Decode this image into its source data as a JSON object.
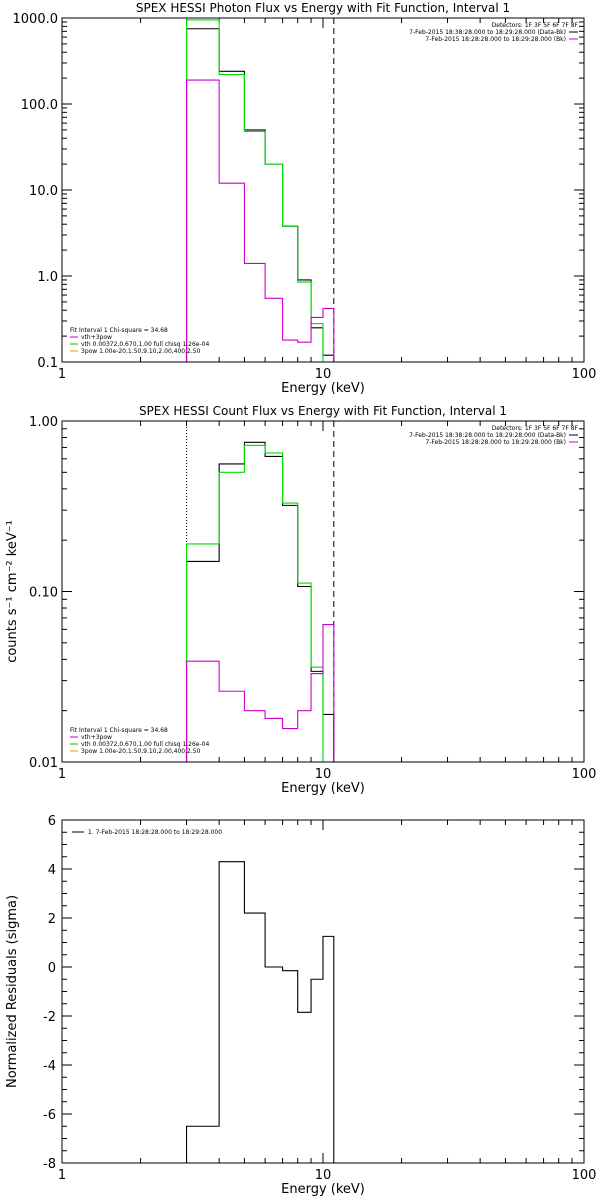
{
  "chart_data": [
    {
      "type": "line",
      "title": "SPEX HESSI Photon Flux vs Energy with Fit Function, Interval 1",
      "xlabel": "Energy (keV)",
      "ylabel": "",
      "xscale": "log",
      "yscale": "log",
      "xlim": [
        1,
        100
      ],
      "ylim": [
        0.1,
        1000
      ],
      "xtick_labels": [
        "1",
        "10",
        "100"
      ],
      "ytick_labels": [
        "0.1",
        "1.0",
        "10.0",
        "100.0",
        "1000.0"
      ],
      "header": {
        "detectors": "Detectors: 1F 3F 5F 6F 7F 8F",
        "entries": [
          "7-Feb-2015 18:38:28.000 to 18:29:28.000 (Data-Bk)",
          "7-Feb-2015 18:28:28.000 to 18:29:28.000 (Bk)"
        ],
        "colors": [
          "#000000",
          "#cc00cc"
        ]
      },
      "fit_legend": {
        "title": "Fit Interval 1    Chi-square = 34.68",
        "entries": [
          "vth+3pow",
          "vth 0.00372,0.670,1.00   full chisq 1.26e-04",
          "3pow 1.00e-20,1.50,9.10,2.00,400,2.50"
        ],
        "colors": [
          "#cc00cc",
          "#00cc00",
          "#e0a000"
        ]
      },
      "edges": [
        3,
        4,
        5,
        6,
        7,
        8,
        9,
        10,
        11
      ],
      "series": [
        {
          "color": "#000000",
          "values": [
            750,
            240,
            50,
            20,
            3.8,
            0.9,
            0.25,
            0.12
          ]
        },
        {
          "color": "#00dd00",
          "values": [
            950,
            220,
            48,
            20,
            3.8,
            0.85,
            0.28,
            0.1
          ]
        },
        {
          "color": "#cc00cc",
          "values": [
            190,
            12,
            1.4,
            0.55,
            0.18,
            0.17,
            0.33,
            0.42
          ]
        }
      ],
      "vlines": [
        {
          "x": 3,
          "color": "#00dd00",
          "style": "dotted"
        },
        {
          "x": 11,
          "color": "#000000",
          "style": "dashed"
        }
      ]
    },
    {
      "type": "line",
      "title": "SPEX HESSI Count Flux vs Energy with Fit Function, Interval 1",
      "xlabel": "Energy (keV)",
      "ylabel": "counts s⁻¹ cm⁻² keV⁻¹",
      "xscale": "log",
      "yscale": "log",
      "xlim": [
        1,
        100
      ],
      "ylim": [
        0.01,
        1.0
      ],
      "xtick_labels": [
        "1",
        "10",
        "100"
      ],
      "ytick_labels": [
        "0.01",
        "0.10",
        "1.00"
      ],
      "header": {
        "detectors": "Detectors: 1F 3F 5F 6F 7F 8F",
        "entries": [
          "7-Feb-2015 18:38:28.000 to 18:29:28.000 (Data-Bk)",
          "7-Feb-2015 18:28:28.000 to 18:29:28.000 (Bk)"
        ],
        "colors": [
          "#000000",
          "#cc00cc"
        ]
      },
      "fit_legend": {
        "title": "Fit Interval 1    Chi-square = 34.68",
        "entries": [
          "vth+3pow",
          "vth 0.00372,0.670,1.00   full chisq 1.26e-04",
          "3pow 1.00e-20,1.50,9.10,2.00,400,2.50"
        ],
        "colors": [
          "#cc00cc",
          "#00cc00",
          "#e0a000"
        ]
      },
      "edges": [
        3,
        4,
        5,
        6,
        7,
        8,
        9,
        10,
        11
      ],
      "series": [
        {
          "color": "#000000",
          "values": [
            0.15,
            0.56,
            0.75,
            0.62,
            0.32,
            0.107,
            0.034,
            0.019
          ]
        },
        {
          "color": "#00dd00",
          "values": [
            0.19,
            0.5,
            0.72,
            0.65,
            0.33,
            0.112,
            0.036,
            0.01
          ]
        },
        {
          "color": "#cc00cc",
          "values": [
            0.039,
            0.026,
            0.02,
            0.018,
            0.0157,
            0.02,
            0.033,
            0.064
          ]
        }
      ],
      "vlines": [
        {
          "x": 3,
          "color": "#000000",
          "style": "dotted"
        },
        {
          "x": 11,
          "color": "#000000",
          "style": "dashed"
        }
      ]
    },
    {
      "type": "line",
      "title": "",
      "xlabel": "Energy (keV)",
      "ylabel": "Normalized Residuals (sigma)",
      "xscale": "log",
      "yscale": "linear",
      "xlim": [
        1,
        100
      ],
      "ylim": [
        -8,
        6
      ],
      "xtick_labels": [
        "1",
        "10",
        "100"
      ],
      "ytick_labels": [
        "-8",
        "-6",
        "-4",
        "-2",
        "0",
        "2",
        "4",
        "6"
      ],
      "legend": {
        "label": "1.  7-Feb-2015 18:28:28.000 to 18:29:28.000",
        "color": "#000000"
      },
      "edges": [
        3,
        4,
        5,
        6,
        7,
        8,
        9,
        10,
        11
      ],
      "series": [
        {
          "color": "#000000",
          "values": [
            -6.5,
            4.3,
            2.2,
            0.0,
            -0.15,
            -1.85,
            -0.5,
            1.25
          ]
        }
      ]
    }
  ]
}
